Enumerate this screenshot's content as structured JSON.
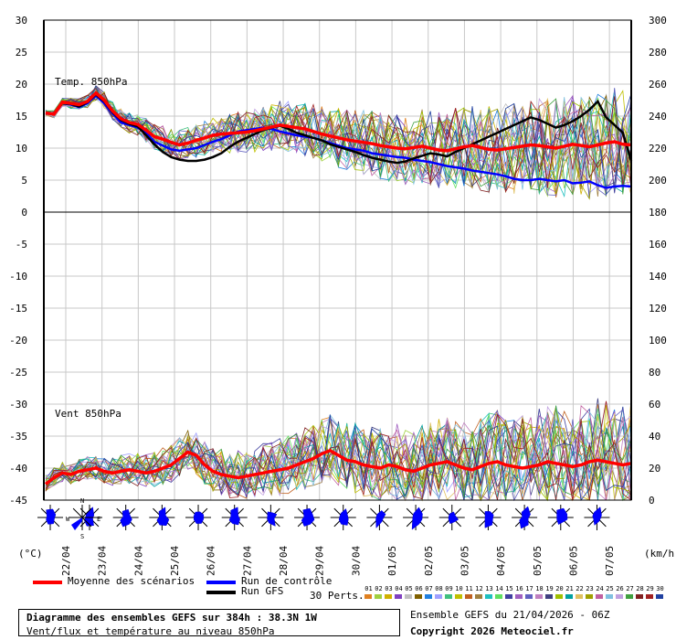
{
  "chart_data": [
    {
      "type": "line",
      "name_label": "Temp. 850hPa",
      "y_left_ticks": [
        "30",
        "25",
        "20",
        "15",
        "10",
        "5",
        "0"
      ],
      "y_right_ticks": [
        "300",
        "280",
        "260",
        "240",
        "220",
        "200",
        "180"
      ],
      "ylim": [
        0,
        30
      ],
      "mean_series": [
        15.5,
        15.3,
        17.2,
        17.0,
        16.8,
        17.3,
        18.6,
        17.5,
        15.8,
        14.6,
        14.0,
        13.7,
        12.8,
        11.8,
        11.4,
        10.9,
        10.5,
        10.8,
        11.2,
        11.6,
        12.0,
        12.2,
        12.3,
        12.4,
        12.5,
        12.7,
        13.0,
        13.3,
        13.6,
        13.4,
        13.2,
        13.0,
        12.6,
        12.2,
        11.9,
        11.6,
        11.3,
        11.1,
        10.9,
        10.7,
        10.4,
        10.2,
        10.0,
        9.9,
        10.1,
        10.3,
        10.0,
        9.7,
        9.6,
        9.9,
        10.2,
        10.4,
        10.1,
        9.8,
        9.7,
        9.9,
        10.1,
        10.3,
        10.5,
        10.4,
        10.2,
        10.0,
        10.3,
        10.6,
        10.4,
        10.2,
        10.5,
        10.8,
        11.0,
        10.6,
        10.5
      ],
      "control_series": [
        15.5,
        15.3,
        17.0,
        16.8,
        16.4,
        17.0,
        18.2,
        17.0,
        15.4,
        14.0,
        13.6,
        13.2,
        12.4,
        11.0,
        10.4,
        9.8,
        9.6,
        9.8,
        10.0,
        10.5,
        11.0,
        11.4,
        12.0,
        12.6,
        12.8,
        13.0,
        13.2,
        13.0,
        12.6,
        12.3,
        12.0,
        11.8,
        11.6,
        11.2,
        10.8,
        10.4,
        10.0,
        9.8,
        9.6,
        9.2,
        9.0,
        8.8,
        8.6,
        8.5,
        8.2,
        8.0,
        7.8,
        7.5,
        7.2,
        7.0,
        6.8,
        6.5,
        6.3,
        6.1,
        5.9,
        5.6,
        5.2,
        5.0,
        5.0,
        5.2,
        5.0,
        4.8,
        5.0,
        4.5,
        4.6,
        4.8,
        4.2,
        3.8,
        4.0,
        4.1,
        4.0
      ],
      "gfs_series": [
        15.5,
        15.3,
        17.0,
        16.9,
        16.5,
        17.2,
        18.4,
        17.3,
        15.6,
        14.4,
        13.8,
        13.4,
        12.0,
        10.6,
        9.4,
        8.6,
        8.2,
        8.0,
        8.0,
        8.2,
        8.6,
        9.2,
        10.2,
        11.0,
        11.6,
        12.2,
        12.8,
        13.2,
        13.5,
        13.0,
        12.4,
        12.0,
        11.6,
        11.2,
        10.6,
        10.2,
        9.8,
        9.4,
        8.9,
        8.5,
        8.2,
        7.9,
        7.7,
        7.9,
        8.4,
        8.8,
        9.2,
        9.0,
        8.7,
        9.4,
        10.0,
        10.6,
        11.2,
        11.8,
        12.4,
        13.0,
        13.6,
        14.2,
        14.8,
        14.4,
        13.8,
        13.2,
        13.6,
        14.2,
        15.0,
        16.0,
        17.3,
        14.8,
        13.6,
        12.4,
        8.0
      ]
    },
    {
      "type": "line",
      "name_label": "Vent 850hPa",
      "y_left_ticks": [
        "-5",
        "-10",
        "-15",
        "-20",
        "-25",
        "-30",
        "-35",
        "-40",
        "-45"
      ],
      "y_right_ticks": [
        "160",
        "140",
        "120",
        "100",
        "80",
        "60",
        "40",
        "20",
        "0"
      ],
      "ylim": [
        0,
        180
      ],
      "mean_series": [
        10,
        14,
        17,
        16,
        18,
        19,
        20,
        18,
        17,
        18,
        19,
        18,
        17,
        18,
        20,
        22,
        26,
        30,
        28,
        22,
        18,
        16,
        15,
        14,
        15,
        16,
        17,
        18,
        19,
        20,
        22,
        24,
        26,
        29,
        31,
        28,
        25,
        24,
        22,
        21,
        20,
        22,
        21,
        19,
        18,
        20,
        22,
        23,
        24,
        22,
        20,
        19,
        21,
        23,
        24,
        22,
        21,
        20,
        21,
        22,
        24,
        23,
        22,
        21,
        22,
        24,
        25,
        24,
        23,
        22,
        23
      ],
      "control_series": [],
      "gfs_series": []
    }
  ],
  "x_ticks": [
    "22/04",
    "23/04",
    "24/04",
    "25/04",
    "26/04",
    "27/04",
    "28/04",
    "29/04",
    "30/04",
    "01/05",
    "02/05",
    "03/05",
    "04/05",
    "05/05",
    "06/05",
    "07/05"
  ],
  "compass": {
    "n": "N",
    "s": "S",
    "w": "W",
    "e": "E"
  },
  "unit_left": "(°C)",
  "unit_right": "(km/h)",
  "legend": {
    "mean": "Moyenne des scénarios",
    "control": "Run de contrôle",
    "gfs": "Run GFS",
    "perts": "30 Perts.",
    "mean_color": "#ff0000",
    "control_color": "#0000ff",
    "gfs_color": "#000000"
  },
  "pert_numbers": [
    "01",
    "02",
    "03",
    "04",
    "05",
    "06",
    "07",
    "08",
    "09",
    "10",
    "11",
    "12",
    "13",
    "14",
    "15",
    "16",
    "17",
    "18",
    "19",
    "20",
    "21",
    "22",
    "23",
    "24",
    "25",
    "26",
    "27",
    "28",
    "29",
    "30"
  ],
  "pert_colors": [
    "#e08020",
    "#a0d040",
    "#d0b000",
    "#8040c0",
    "#c0c0c0",
    "#806000",
    "#2080e0",
    "#a0a0ff",
    "#40c080",
    "#c0c000",
    "#c06020",
    "#a08040",
    "#20c0c0",
    "#60e060",
    "#4040a0",
    "#a060c0",
    "#6060c0",
    "#c080c0",
    "#404080",
    "#a0c000",
    "#00a0a0",
    "#e0c060",
    "#a0a000",
    "#c060a0",
    "#80c0e0",
    "#c0a0e0",
    "#40a040",
    "#802020",
    "#a02020",
    "#2040a0"
  ],
  "info": {
    "title": "Diagramme des ensembles GEFS sur 384h : 38.3N 1W",
    "subtitle": "Vent/flux et température au niveau 850hPa",
    "run": "Ensemble GEFS du 21/04/2026 - 06Z",
    "copyright": "Copyright 2026 Meteociel.fr"
  }
}
